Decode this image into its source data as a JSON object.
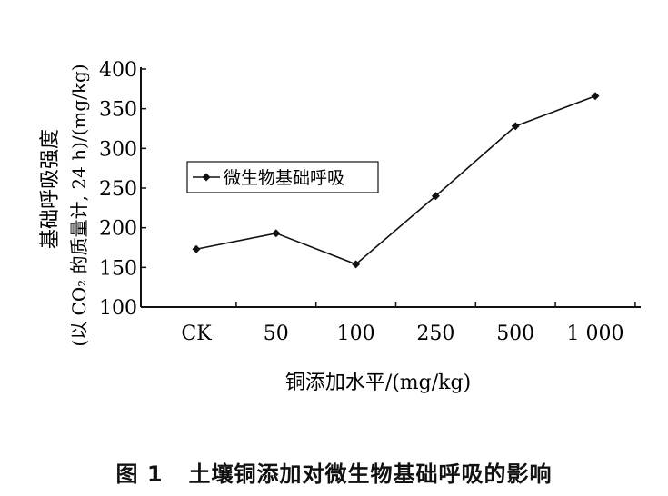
{
  "chart_data": {
    "type": "line",
    "categories": [
      "CK",
      "50",
      "100",
      "250",
      "500",
      "1 000"
    ],
    "series": [
      {
        "name": "微生物基础呼吸",
        "values": [
          173,
          193,
          154,
          240,
          328,
          366
        ],
        "color": "#111111",
        "marker": "diamond"
      }
    ],
    "xlabel": "铜添加水平/(mg/kg)",
    "ylabel_line1": "基础呼吸强度",
    "ylabel_line2": "(以 CO₂ 的质量计, 24 h)/(mg/kg)",
    "ylim": [
      100,
      400
    ],
    "yticks": [
      "100",
      "150",
      "200",
      "250",
      "300",
      "350",
      "400"
    ],
    "grid": false,
    "legend_position": "upper-left"
  },
  "caption": {
    "number": "图 1",
    "text": "土壤铜添加对微生物基础呼吸的影响"
  }
}
